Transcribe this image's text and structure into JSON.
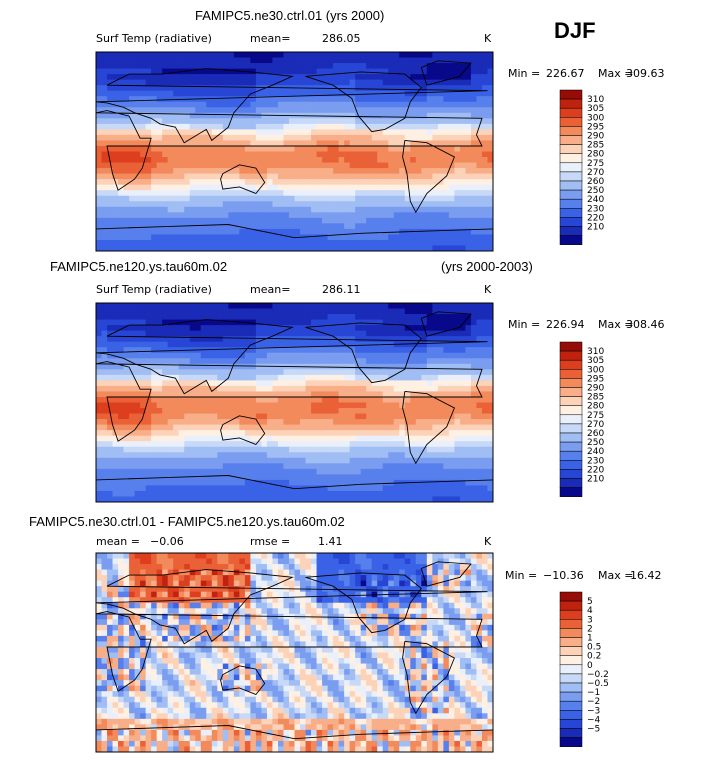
{
  "season": "DJF",
  "colors": {
    "temp_scale": [
      "#08088a",
      "#1a2bb8",
      "#2846d6",
      "#3a62e6",
      "#5880ec",
      "#7b9df0",
      "#a0bdf4",
      "#c8d9f8",
      "#e9f0fc",
      "#fff0e4",
      "#fcd3b8",
      "#f8ae88",
      "#f28a5c",
      "#ea6138",
      "#dc3e1e",
      "#c02210",
      "#960c06"
    ],
    "diff_scale": [
      "#08088a",
      "#1a2bb8",
      "#2846d6",
      "#3a62e6",
      "#5880ec",
      "#7b9df0",
      "#a0bdf4",
      "#c8d9f8",
      "#e9f0fc",
      "#fff0e4",
      "#fcd3b8",
      "#f8ae88",
      "#f28a5c",
      "#ea6138",
      "#dc3e1e",
      "#c02210",
      "#960c06"
    ]
  },
  "panels": [
    {
      "id": "ctrl",
      "title": "FAMIPC5.ne30.ctrl.01 (yrs 2000)",
      "years": "",
      "left_label": "Surf Temp (radiative)",
      "stat_label": "mean=",
      "stat_value": "286.05",
      "stat2_label": "",
      "stat2_value": "",
      "units": "K",
      "min_label": "Min =",
      "min_value": "226.67",
      "max_label": "Max =",
      "max_value": "309.63",
      "levels": [
        "310",
        "305",
        "300",
        "295",
        "290",
        "285",
        "280",
        "275",
        "270",
        "260",
        "250",
        "240",
        "230",
        "220",
        "210"
      ]
    },
    {
      "id": "test",
      "title": "FAMIPC5.ne120.ys.tau60m.02",
      "years": "(yrs 2000-2003)",
      "left_label": "Surf Temp (radiative)",
      "stat_label": "mean=",
      "stat_value": "286.11",
      "stat2_label": "",
      "stat2_value": "",
      "units": "K",
      "min_label": "Min =",
      "min_value": "226.94",
      "max_label": "Max =",
      "max_value": "308.46",
      "levels": [
        "310",
        "305",
        "300",
        "295",
        "290",
        "285",
        "280",
        "275",
        "270",
        "260",
        "250",
        "240",
        "230",
        "220",
        "210"
      ]
    },
    {
      "id": "diff",
      "title": "FAMIPC5.ne30.ctrl.01 - FAMIPC5.ne120.ys.tau60m.02",
      "years": "",
      "left_label": "mean =",
      "stat_label": "",
      "stat_value": "−0.06",
      "stat2_label": "rmse =",
      "stat2_value": "1.41",
      "units": "K",
      "min_label": "Min =",
      "min_value": "−10.36",
      "max_label": "Max =",
      "max_value": "16.42",
      "levels": [
        "5",
        "4",
        "3",
        "2",
        "1",
        "0.5",
        "0.2",
        "0",
        "−0.2",
        "−0.5",
        "−1",
        "−2",
        "−3",
        "−4",
        "−5"
      ]
    }
  ],
  "chart_data": [
    {
      "type": "heatmap",
      "title": "FAMIPC5.ne30.ctrl.01 (yrs 2000)",
      "variable": "Surf Temp (radiative)",
      "units": "K",
      "mean": 286.05,
      "min": 226.67,
      "max": 309.63,
      "x_range_lon": [
        0,
        360
      ],
      "y_range_lat": [
        -90,
        90
      ],
      "contour_levels": [
        210,
        220,
        230,
        240,
        250,
        260,
        270,
        275,
        280,
        285,
        290,
        295,
        300,
        305,
        310
      ]
    },
    {
      "type": "heatmap",
      "title": "FAMIPC5.ne120.ys.tau60m.02 (yrs 2000-2003)",
      "variable": "Surf Temp (radiative)",
      "units": "K",
      "mean": 286.11,
      "min": 226.94,
      "max": 308.46,
      "x_range_lon": [
        0,
        360
      ],
      "y_range_lat": [
        -90,
        90
      ],
      "contour_levels": [
        210,
        220,
        230,
        240,
        250,
        260,
        270,
        275,
        280,
        285,
        290,
        295,
        300,
        305,
        310
      ]
    },
    {
      "type": "heatmap",
      "title": "FAMIPC5.ne30.ctrl.01 - FAMIPC5.ne120.ys.tau60m.02",
      "units": "K",
      "mean": -0.06,
      "rmse": 1.41,
      "min": -10.36,
      "max": 16.42,
      "x_range_lon": [
        0,
        360
      ],
      "y_range_lat": [
        -90,
        90
      ],
      "contour_levels": [
        -5,
        -4,
        -3,
        -2,
        -1,
        -0.5,
        -0.2,
        0,
        0.2,
        0.5,
        1,
        2,
        3,
        4,
        5
      ]
    }
  ]
}
